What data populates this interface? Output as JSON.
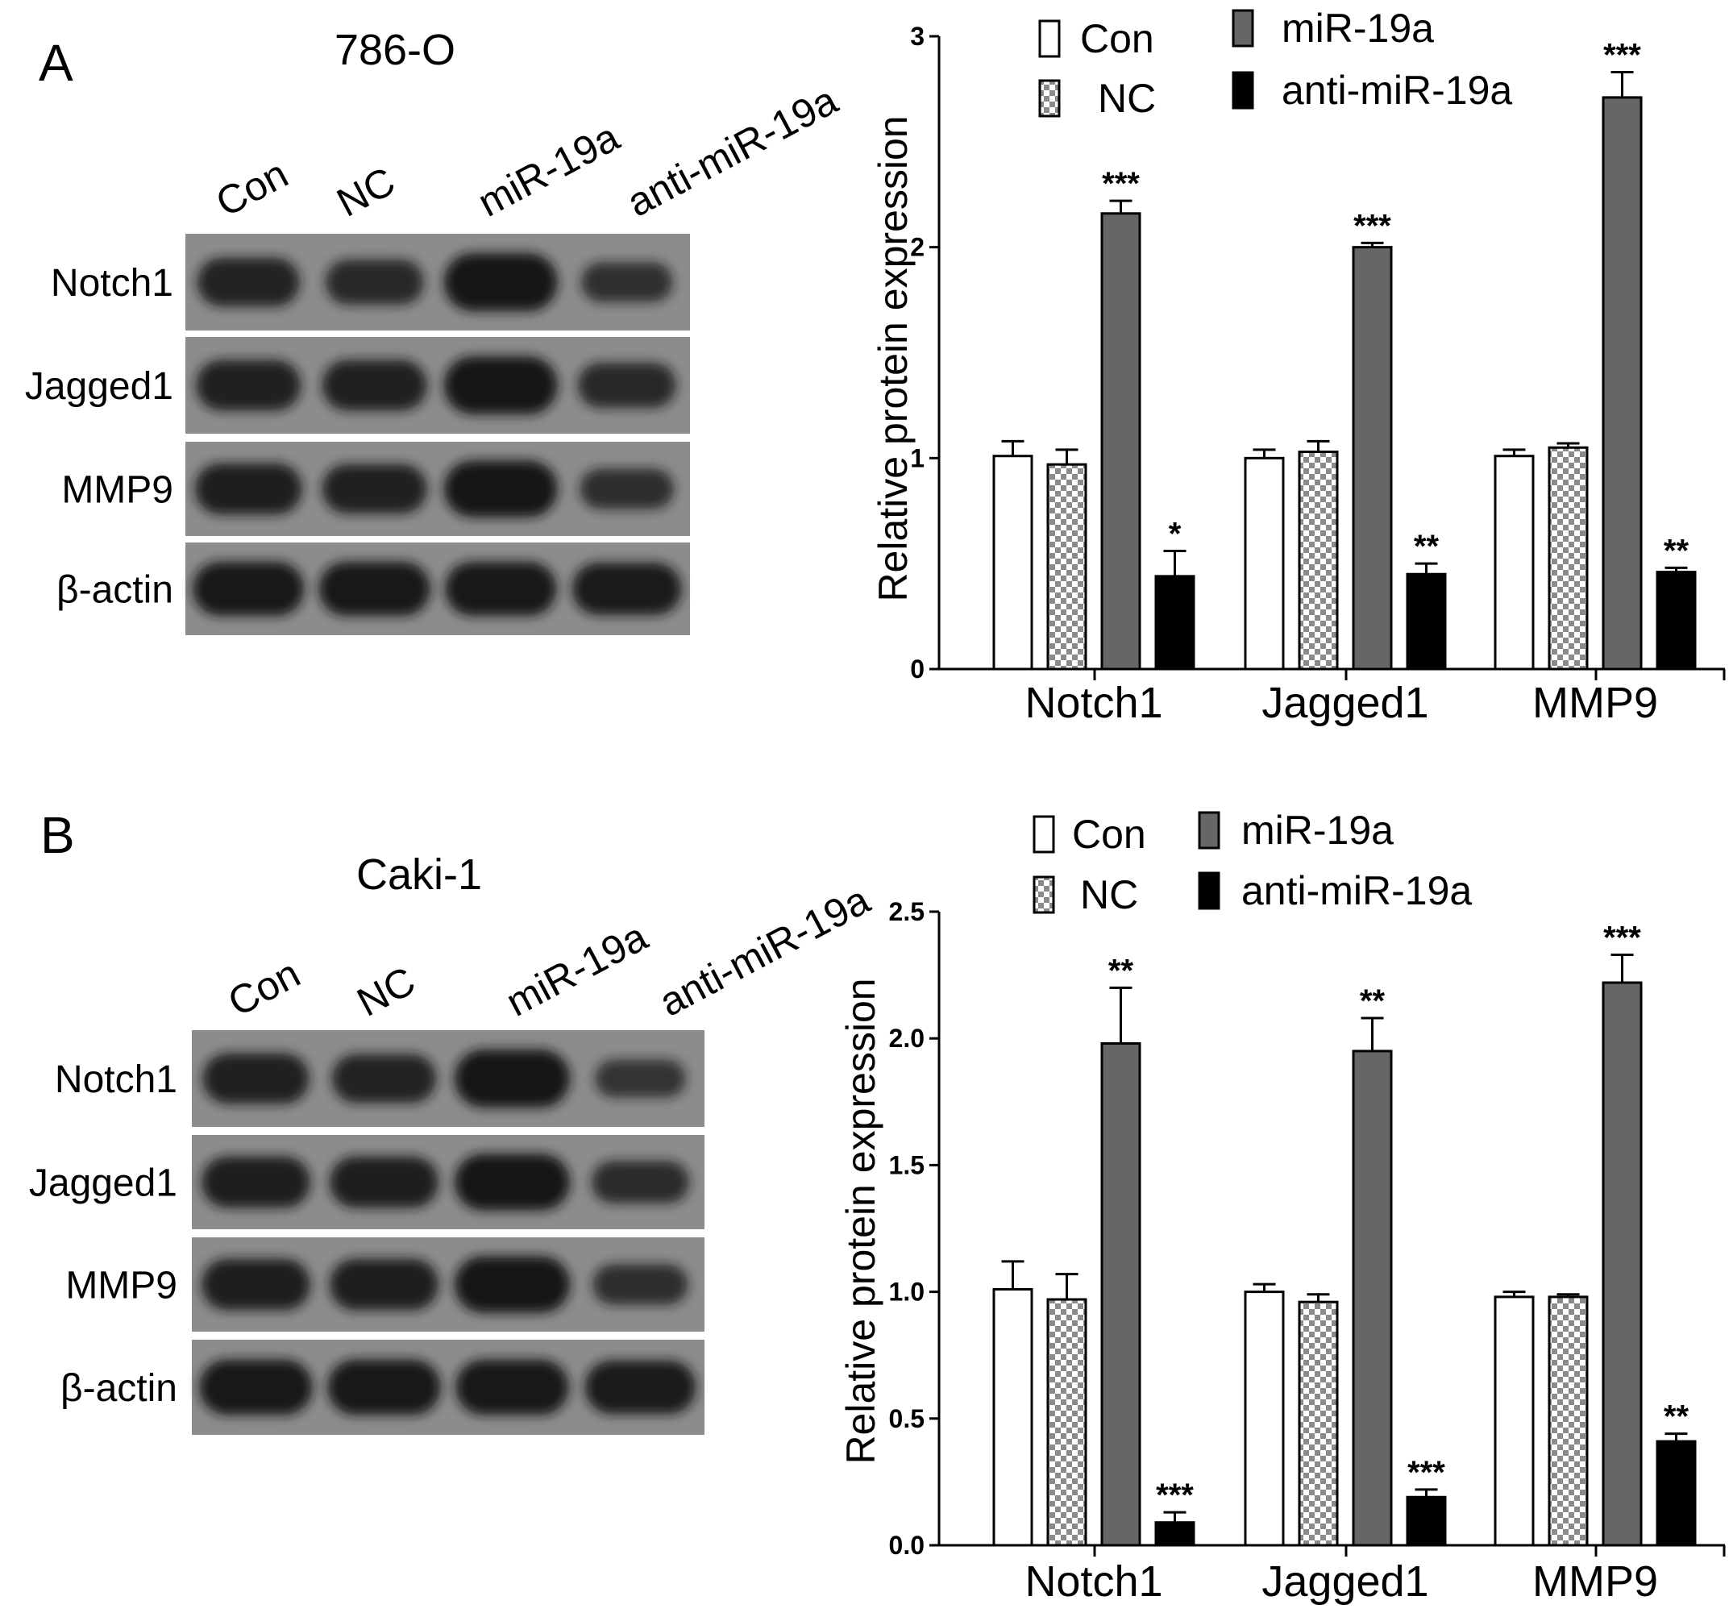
{
  "panels": [
    {
      "letter": "A",
      "cell_line": "786-O",
      "lanes": [
        "Con",
        "NC",
        "miR-19a",
        "anti-miR-19a"
      ],
      "blot_rows": [
        "Notch1",
        "Jagged1",
        "MMP9",
        "β-actin"
      ]
    },
    {
      "letter": "B",
      "cell_line": "Caki-1",
      "lanes": [
        "Con",
        "NC",
        "miR-19a",
        "anti-miR-19a"
      ],
      "blot_rows": [
        "Notch1",
        "Jagged1",
        "MMP9",
        "β-actin"
      ]
    }
  ],
  "colors": {
    "Con": "#ffffff",
    "NC": "#c8c8c8",
    "miR-19a": "#666666",
    "anti-miR-19a": "#000000",
    "blot_background": "#8c8c8c",
    "band": "#141414"
  },
  "blot_bands": [
    {
      "Notch1": [
        0.75,
        0.65,
        1.0,
        0.5
      ],
      "Jagged1": [
        0.8,
        0.8,
        1.0,
        0.65
      ],
      "MMP9": [
        0.85,
        0.8,
        1.0,
        0.55
      ],
      "β-actin": [
        0.95,
        0.95,
        0.95,
        0.9
      ]
    },
    {
      "Notch1": [
        0.8,
        0.75,
        1.0,
        0.45
      ],
      "Jagged1": [
        0.85,
        0.85,
        1.0,
        0.6
      ],
      "MMP9": [
        0.85,
        0.85,
        1.0,
        0.55
      ],
      "β-actin": [
        0.95,
        0.95,
        0.95,
        0.9
      ]
    }
  ],
  "chart_data": [
    {
      "type": "bar",
      "categories": [
        "Notch1",
        "Jagged1",
        "MMP9"
      ],
      "ylabel": "Relative protein expression",
      "ylim": [
        0,
        3
      ],
      "yticks": [
        "0",
        "1",
        "2",
        "3"
      ],
      "ytick_values": [
        0,
        1,
        2,
        3
      ],
      "legend_placement": "top",
      "series": [
        {
          "name": "Con",
          "values": [
            1.01,
            1.0,
            1.01
          ],
          "errors": [
            0.07,
            0.04,
            0.03
          ],
          "sig": [
            "",
            "",
            ""
          ]
        },
        {
          "name": "NC",
          "values": [
            0.97,
            1.03,
            1.05
          ],
          "errors": [
            0.07,
            0.05,
            0.02
          ],
          "sig": [
            "",
            "",
            ""
          ]
        },
        {
          "name": "miR-19a",
          "values": [
            2.16,
            2.0,
            2.71
          ],
          "errors": [
            0.06,
            0.02,
            0.12
          ],
          "sig": [
            "***",
            "***",
            "***"
          ]
        },
        {
          "name": "anti-miR-19a",
          "values": [
            0.44,
            0.45,
            0.46
          ],
          "errors": [
            0.12,
            0.05,
            0.02
          ],
          "sig": [
            "*",
            "**",
            "**"
          ]
        }
      ]
    },
    {
      "type": "bar",
      "categories": [
        "Notch1",
        "Jagged1",
        "MMP9"
      ],
      "ylabel": "Relative protein expression",
      "ylim": [
        0,
        2.5
      ],
      "yticks": [
        "0.0",
        "0.5",
        "1.0",
        "1.5",
        "2.0",
        "2.5"
      ],
      "ytick_values": [
        0,
        0.5,
        1.0,
        1.5,
        2.0,
        2.5
      ],
      "legend_placement": "top",
      "series": [
        {
          "name": "Con",
          "values": [
            1.01,
            1.0,
            0.98
          ],
          "errors": [
            0.11,
            0.03,
            0.02
          ],
          "sig": [
            "",
            "",
            ""
          ]
        },
        {
          "name": "NC",
          "values": [
            0.97,
            0.96,
            0.98
          ],
          "errors": [
            0.1,
            0.03,
            0.01
          ],
          "sig": [
            "",
            "",
            ""
          ]
        },
        {
          "name": "miR-19a",
          "values": [
            1.98,
            1.95,
            2.22
          ],
          "errors": [
            0.22,
            0.13,
            0.11
          ],
          "sig": [
            "**",
            "**",
            "***"
          ]
        },
        {
          "name": "anti-miR-19a",
          "values": [
            0.09,
            0.19,
            0.41
          ],
          "errors": [
            0.04,
            0.03,
            0.03
          ],
          "sig": [
            "***",
            "***",
            "**"
          ]
        }
      ]
    }
  ]
}
